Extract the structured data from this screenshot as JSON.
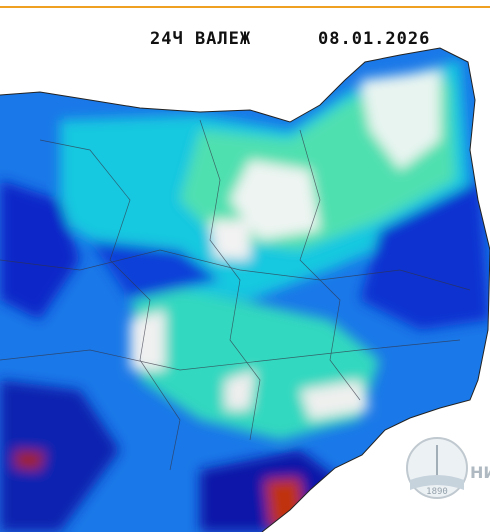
{
  "header": {
    "title": "24Ч ВАЛЕЖ",
    "date": "08.01.2026"
  },
  "logo": {
    "text": "НИ",
    "year": "1890"
  }
}
